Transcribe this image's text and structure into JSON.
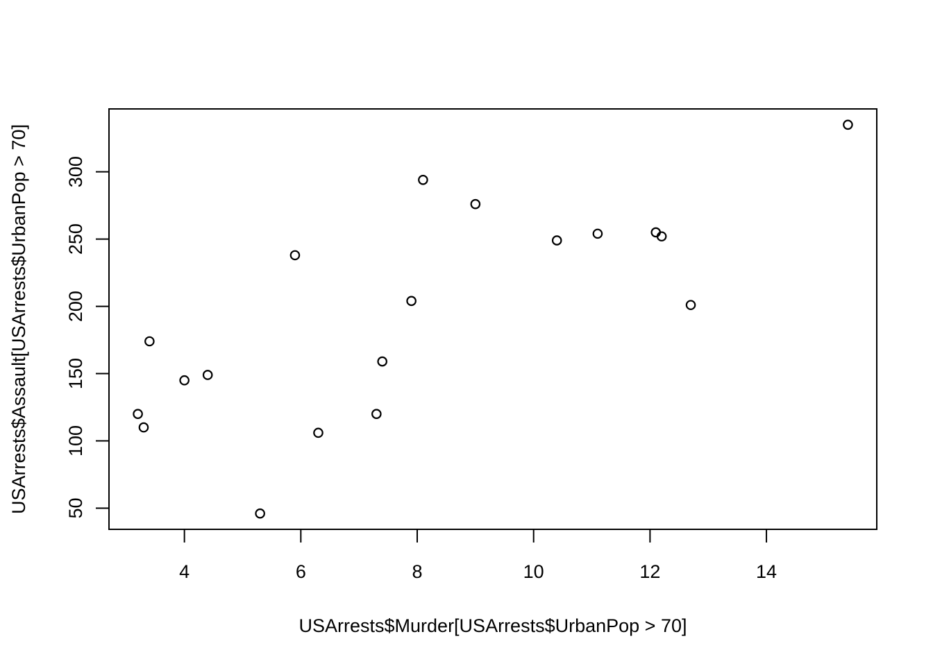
{
  "chart_data": {
    "type": "scatter",
    "title": "",
    "xlabel": "USArrests$Murder[USArrests$UrbanPop > 70]",
    "ylabel": "USArrests$Assault[USArrests$UrbanPop > 70]",
    "xlim": [
      2.704,
      15.896
    ],
    "ylim": [
      34.24,
      346.76
    ],
    "x_ticks": [
      4,
      6,
      8,
      10,
      12,
      14
    ],
    "x_tick_labels": [
      "4",
      "6",
      "8",
      "10",
      "12",
      "14"
    ],
    "y_ticks": [
      50,
      100,
      150,
      200,
      250,
      300
    ],
    "y_tick_labels": [
      "50",
      "100",
      "150",
      "200",
      "250",
      "300"
    ],
    "grid": false,
    "legend": "none",
    "point_style": "open-circle",
    "point_color": "#000000",
    "series": [
      {
        "x": [
          3.2,
          3.3,
          3.4,
          4.0,
          4.4,
          5.3,
          5.9,
          6.3,
          7.3,
          7.4,
          7.9,
          8.1,
          9.0,
          10.4,
          11.1,
          12.1,
          12.2,
          12.7,
          15.4
        ],
        "y": [
          120,
          110,
          174,
          145,
          149,
          46,
          238,
          106,
          120,
          159,
          204,
          294,
          276,
          249,
          254,
          255,
          252,
          201,
          335
        ]
      }
    ]
  }
}
